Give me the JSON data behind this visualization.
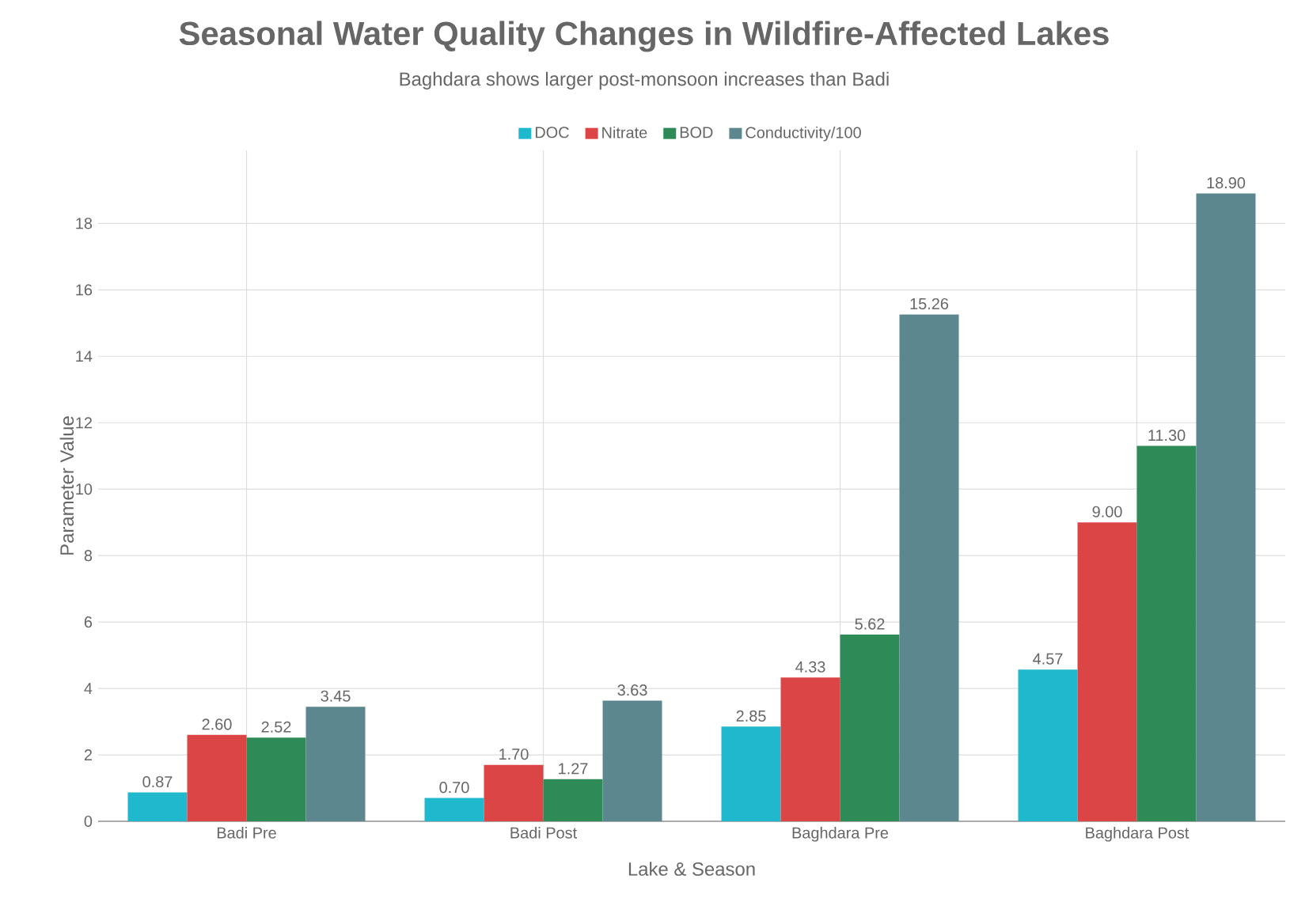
{
  "chart_data": {
    "type": "bar",
    "title": "Seasonal Water Quality Changes in Wildfire-Affected Lakes",
    "subtitle": "Baghdara shows larger post-monsoon increases than Badi",
    "xlabel": "Lake & Season",
    "ylabel": "Parameter Value",
    "categories": [
      "Badi Pre",
      "Badi Post",
      "Baghdara Pre",
      "Baghdara Post"
    ],
    "series": [
      {
        "name": "DOC",
        "color": "#1fb8cd",
        "values": [
          0.87,
          0.7,
          2.85,
          4.57
        ],
        "value_labels": [
          "0.87",
          "0.70",
          "2.85",
          "4.57"
        ]
      },
      {
        "name": "Nitrate",
        "color": "#db4545",
        "values": [
          2.6,
          1.7,
          4.33,
          9.0
        ],
        "value_labels": [
          "2.60",
          "1.70",
          "4.33",
          "9.00"
        ]
      },
      {
        "name": "BOD",
        "color": "#2e8b57",
        "values": [
          2.52,
          1.27,
          5.62,
          11.3
        ],
        "value_labels": [
          "2.52",
          "1.27",
          "5.62",
          "11.30"
        ]
      },
      {
        "name": "Conductivity/100",
        "color": "#5d878f",
        "values": [
          3.45,
          3.63,
          15.26,
          18.9
        ],
        "value_labels": [
          "3.45",
          "3.63",
          "15.26",
          "18.90"
        ]
      }
    ],
    "ylim": [
      0,
      20.2
    ],
    "yticks": [
      0,
      2,
      4,
      6,
      8,
      10,
      12,
      14,
      16,
      18
    ],
    "grid": true,
    "legend": "top"
  }
}
